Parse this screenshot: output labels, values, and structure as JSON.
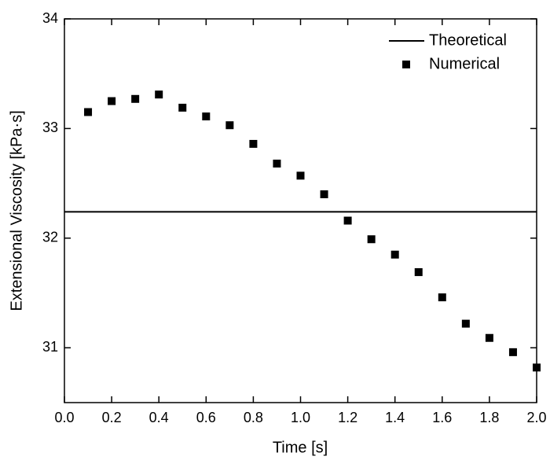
{
  "chart_data": {
    "type": "line",
    "x_label": "Time [s]",
    "y_label": "Extensional Viscosity [kPa·s]",
    "xlim": [
      0,
      2
    ],
    "ylim": [
      30.5,
      34
    ],
    "xticks": [
      {
        "value": 0,
        "label": "0.0"
      },
      {
        "value": 0.2,
        "label": "0.2"
      },
      {
        "value": 0.4,
        "label": "0.4"
      },
      {
        "value": 0.6,
        "label": "0.6"
      },
      {
        "value": 0.8,
        "label": "0.8"
      },
      {
        "value": 1,
        "label": "1.0"
      },
      {
        "value": 1.2,
        "label": "1.2"
      },
      {
        "value": 1.4,
        "label": "1.4"
      },
      {
        "value": 1.6,
        "label": "1.6"
      },
      {
        "value": 1.8,
        "label": "1.8"
      },
      {
        "value": 2,
        "label": "2.0"
      }
    ],
    "yticks": [
      31,
      32,
      33,
      34
    ],
    "legend": "upper right",
    "series": [
      {
        "name": "Theoretical",
        "style": "line",
        "color": "#000000",
        "x": [
          0,
          2
        ],
        "values": [
          32.24,
          32.24
        ]
      },
      {
        "name": "Numerical",
        "style": "marker",
        "color": "#000000",
        "x": [
          0.1,
          0.2,
          0.3,
          0.4,
          0.5,
          0.6,
          0.7,
          0.8,
          0.9,
          1.0,
          1.1,
          1.2,
          1.3,
          1.4,
          1.5,
          1.6,
          1.7,
          1.8,
          1.9,
          2.0
        ],
        "values": [
          33.15,
          33.25,
          33.27,
          33.31,
          33.19,
          33.11,
          33.03,
          32.86,
          32.68,
          32.57,
          32.4,
          32.16,
          31.99,
          31.85,
          31.69,
          31.46,
          31.22,
          31.09,
          30.96,
          30.82
        ]
      }
    ]
  }
}
